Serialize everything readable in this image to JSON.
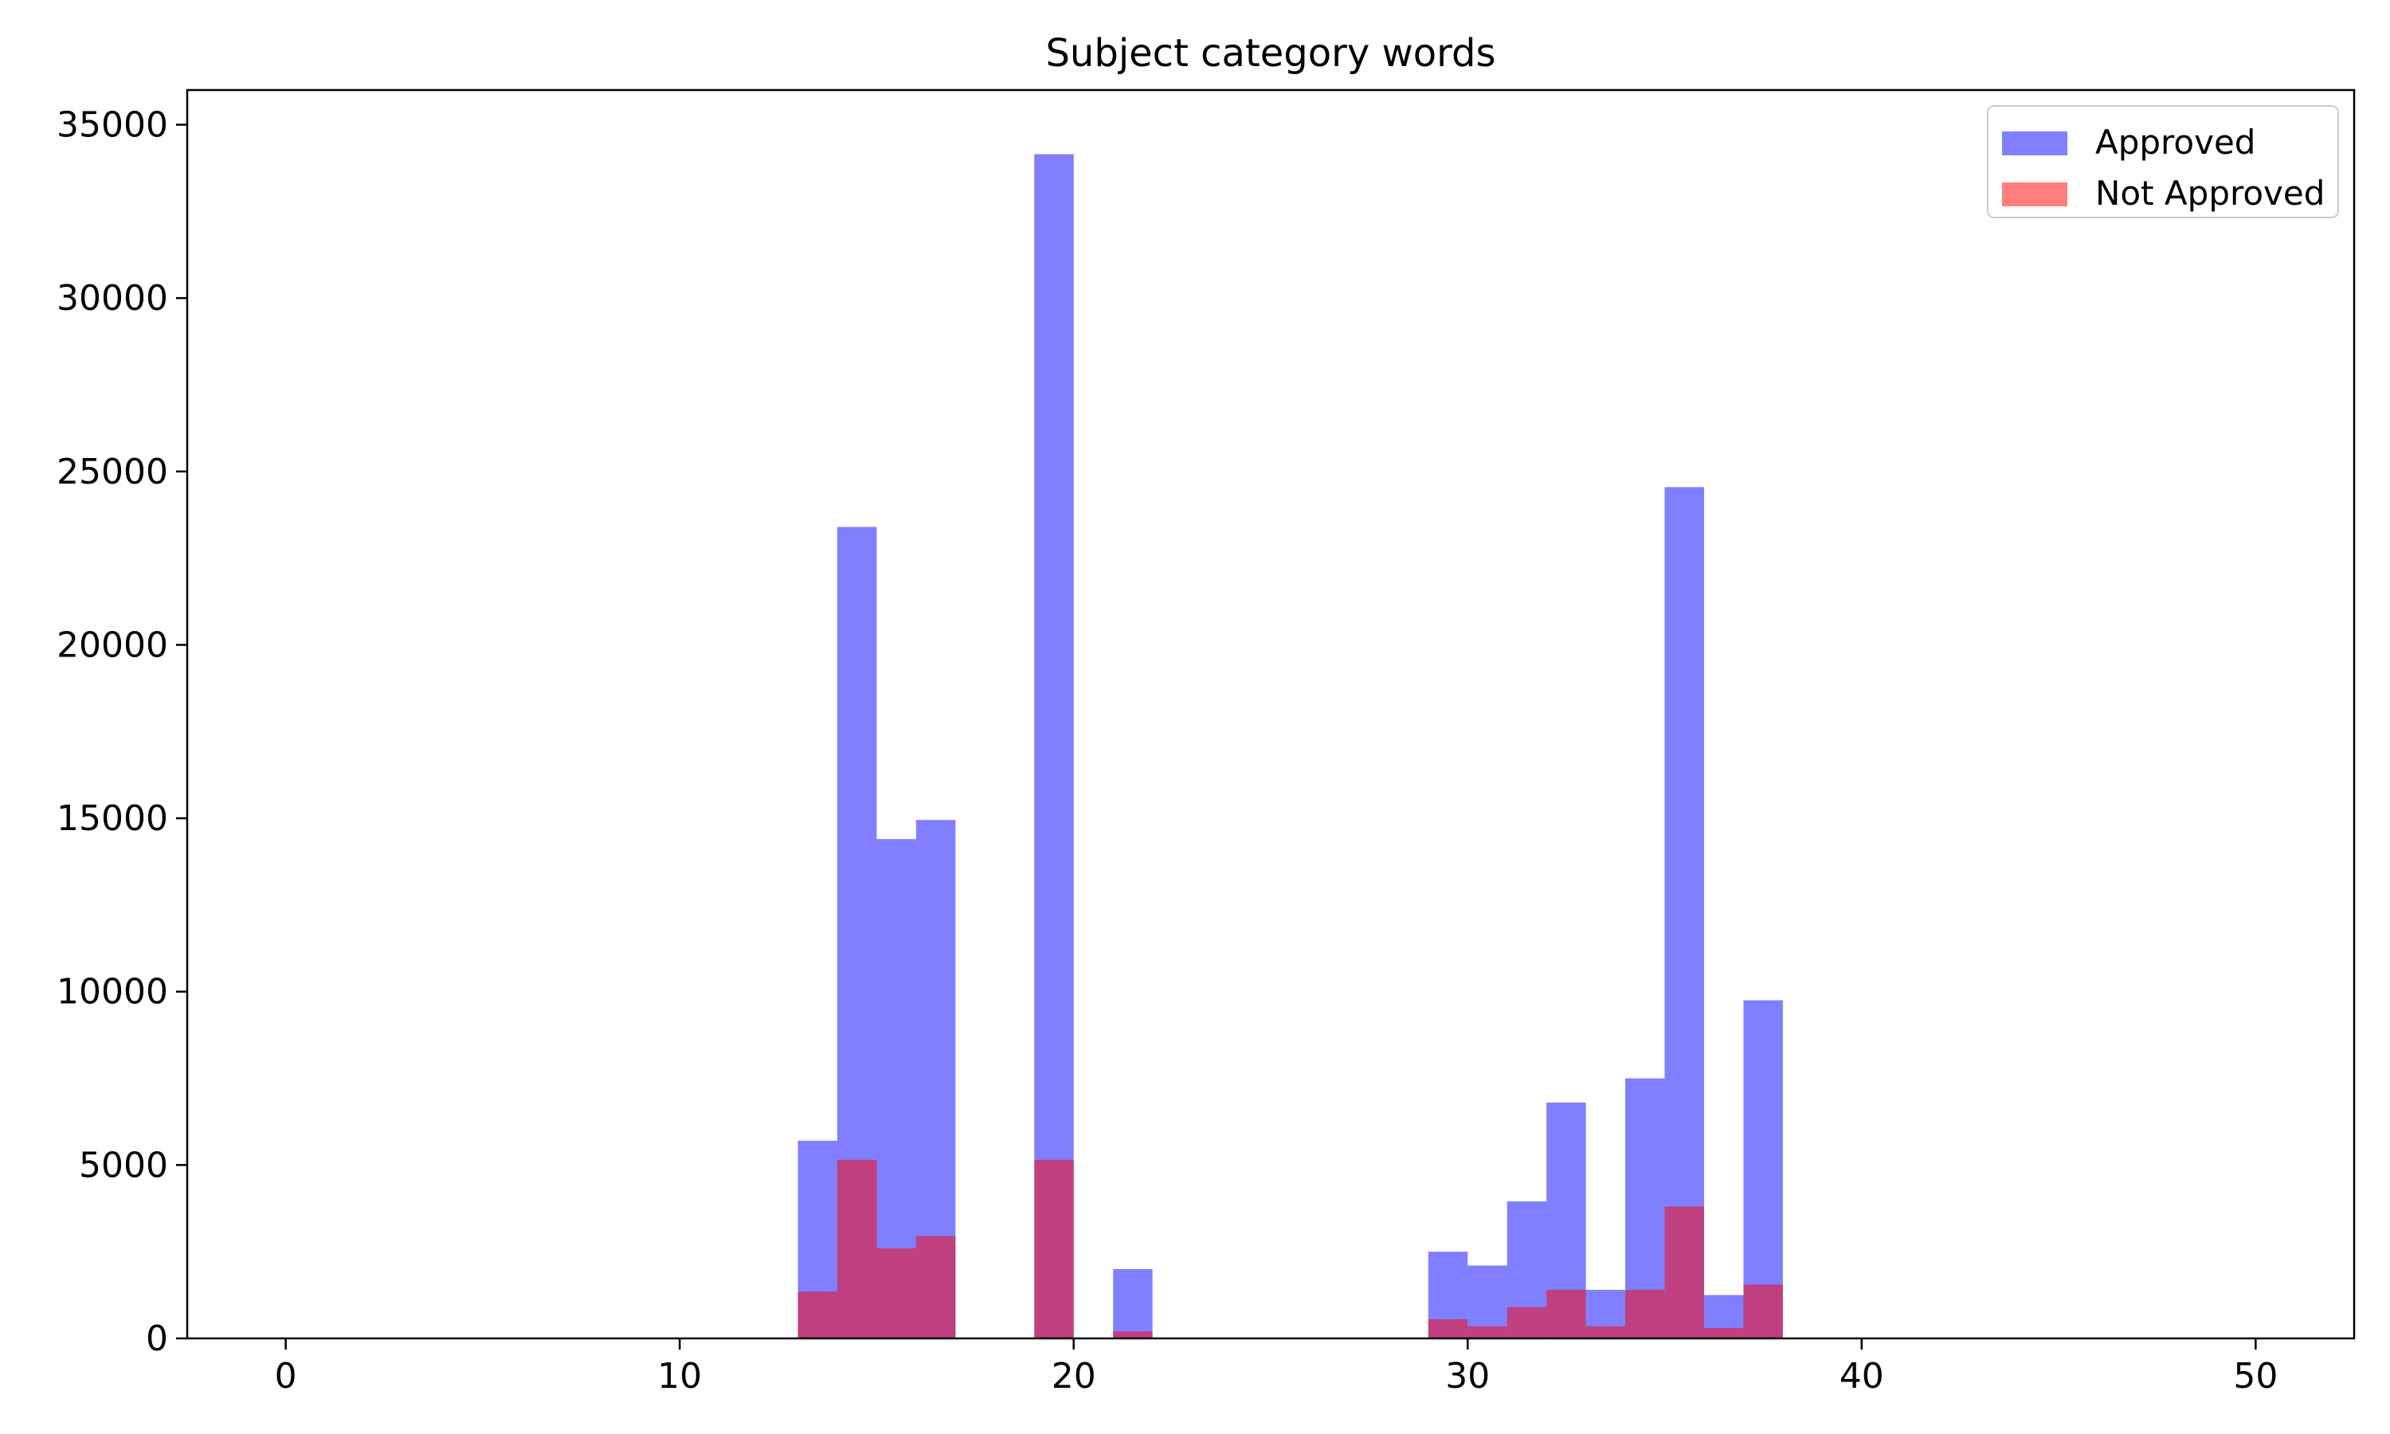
{
  "chart_data": {
    "type": "bar",
    "title": "Subject category words",
    "xlabel": "",
    "ylabel": "",
    "xlim": [
      -2.5,
      52.5
    ],
    "ylim": [
      0,
      36000
    ],
    "xticks": [
      0,
      10,
      20,
      30,
      40,
      50
    ],
    "yticks": [
      0,
      5000,
      10000,
      15000,
      20000,
      25000,
      30000,
      35000
    ],
    "bin_width": 1,
    "grid": false,
    "legend_position": "top-right",
    "series": [
      {
        "name": "Approved",
        "color": "#0000ff",
        "opacity": 0.5,
        "bins": [
          {
            "x0": 13,
            "value": 5700
          },
          {
            "x0": 14,
            "value": 23400
          },
          {
            "x0": 15,
            "value": 14400
          },
          {
            "x0": 16,
            "value": 14950
          },
          {
            "x0": 19,
            "value": 34150
          },
          {
            "x0": 21,
            "value": 2000
          },
          {
            "x0": 29,
            "value": 2500
          },
          {
            "x0": 30,
            "value": 2100
          },
          {
            "x0": 31,
            "value": 3950
          },
          {
            "x0": 32,
            "value": 6800
          },
          {
            "x0": 33,
            "value": 1400
          },
          {
            "x0": 34,
            "value": 7500
          },
          {
            "x0": 35,
            "value": 24550
          },
          {
            "x0": 36,
            "value": 1250
          },
          {
            "x0": 37,
            "value": 9750
          }
        ]
      },
      {
        "name": "Not Approved",
        "color": "#ff0000",
        "opacity": 0.5,
        "bins": [
          {
            "x0": 13,
            "value": 1350
          },
          {
            "x0": 14,
            "value": 5150
          },
          {
            "x0": 15,
            "value": 2600
          },
          {
            "x0": 16,
            "value": 2950
          },
          {
            "x0": 19,
            "value": 5150
          },
          {
            "x0": 21,
            "value": 200
          },
          {
            "x0": 29,
            "value": 550
          },
          {
            "x0": 30,
            "value": 350
          },
          {
            "x0": 31,
            "value": 900
          },
          {
            "x0": 32,
            "value": 1400
          },
          {
            "x0": 33,
            "value": 350
          },
          {
            "x0": 34,
            "value": 1400
          },
          {
            "x0": 35,
            "value": 3800
          },
          {
            "x0": 36,
            "value": 300
          },
          {
            "x0": 37,
            "value": 1550
          }
        ]
      }
    ]
  }
}
